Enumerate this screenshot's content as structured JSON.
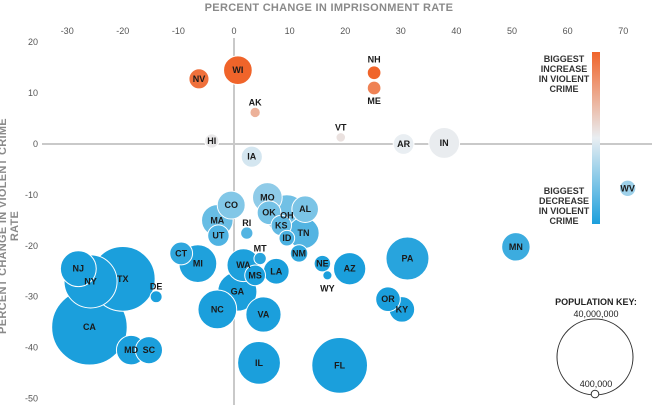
{
  "chart_data": {
    "type": "scatter",
    "xlabel": "PERCENT CHANGE IN IMPRISONMENT RATE",
    "ylabel": "PERCENT CHANGE IN VIOLENT CRIME RATE",
    "xlim": [
      -30,
      72
    ],
    "ylim": [
      -50,
      20
    ],
    "xticks": [
      "-30",
      "-20",
      "-10",
      "0",
      "10",
      "20",
      "30",
      "40",
      "50",
      "60",
      "70"
    ],
    "yticks": [
      "20",
      "10",
      "0",
      "-10",
      "-20",
      "-30",
      "-40",
      "-50"
    ],
    "color_legend": {
      "top_label": "BIGGEST INCREASE IN VIOLENT CRIME",
      "bottom_label": "BIGGEST DECREASE IN VIOLENT CRIME",
      "top_color": "#f0642a",
      "mid_color": "#e9eef2",
      "bottom_color": "#1b9fdc"
    },
    "population_key": {
      "title": "POPULATION KEY:",
      "large_label": "40,000,000",
      "small_label": "400,000"
    },
    "points": [
      {
        "label": "WI",
        "x": 0.7,
        "y": 14.5,
        "pop": 5.7
      },
      {
        "label": "NV",
        "x": -6.3,
        "y": 12.8,
        "pop": 2.8
      },
      {
        "label": "NH",
        "x": 25.2,
        "y": 14.0,
        "pop": 1.3
      },
      {
        "label": "ME",
        "x": 25.2,
        "y": 11.0,
        "pop": 1.3
      },
      {
        "label": "AK",
        "x": 3.8,
        "y": 6.2,
        "pop": 0.74
      },
      {
        "label": "VT",
        "x": 19.2,
        "y": 1.3,
        "pop": 0.63
      },
      {
        "label": "HI",
        "x": -4.0,
        "y": 0.6,
        "pop": 1.4
      },
      {
        "label": "AR",
        "x": 30.5,
        "y": 0.0,
        "pop": 3.0
      },
      {
        "label": "IN",
        "x": 37.8,
        "y": 0.2,
        "pop": 6.6
      },
      {
        "label": "IA",
        "x": 3.2,
        "y": -2.5,
        "pop": 3.1
      },
      {
        "label": "WV",
        "x": 70.8,
        "y": -8.7,
        "pop": 1.85
      },
      {
        "label": "CO",
        "x": -0.5,
        "y": -12.0,
        "pop": 5.4
      },
      {
        "label": "MO",
        "x": 6.0,
        "y": -10.5,
        "pop": 6.1
      },
      {
        "label": "OK",
        "x": 6.3,
        "y": -13.5,
        "pop": 3.9
      },
      {
        "label": "AL",
        "x": 12.8,
        "y": -12.8,
        "pop": 4.9
      },
      {
        "label": "OH",
        "x": 9.5,
        "y": -14.0,
        "pop": 11.6
      },
      {
        "label": "KS",
        "x": 8.5,
        "y": -16.0,
        "pop": 2.9
      },
      {
        "label": "MA",
        "x": -3.0,
        "y": -15.0,
        "pop": 6.9
      },
      {
        "label": "TN",
        "x": 12.5,
        "y": -17.5,
        "pop": 6.8
      },
      {
        "label": "ID",
        "x": 9.5,
        "y": -18.5,
        "pop": 1.7
      },
      {
        "label": "RI",
        "x": 2.3,
        "y": -17.5,
        "pop": 1.05
      },
      {
        "label": "UT",
        "x": -2.8,
        "y": -18.0,
        "pop": 3.2
      },
      {
        "label": "NM",
        "x": 11.7,
        "y": -21.5,
        "pop": 2.1
      },
      {
        "label": "MN",
        "x": 50.7,
        "y": -20.2,
        "pop": 5.6
      },
      {
        "label": "CT",
        "x": -9.5,
        "y": -21.5,
        "pop": 3.6
      },
      {
        "label": "MI",
        "x": -6.5,
        "y": -23.5,
        "pop": 9.9
      },
      {
        "label": "PA",
        "x": 31.2,
        "y": -22.5,
        "pop": 12.8
      },
      {
        "label": "NE",
        "x": 15.9,
        "y": -23.5,
        "pop": 1.9
      },
      {
        "label": "AZ",
        "x": 20.8,
        "y": -24.5,
        "pop": 7.2
      },
      {
        "label": "WA",
        "x": 1.7,
        "y": -23.8,
        "pop": 7.5
      },
      {
        "label": "MT",
        "x": 4.7,
        "y": -22.5,
        "pop": 1.06
      },
      {
        "label": "LA",
        "x": 7.6,
        "y": -25.0,
        "pop": 4.6
      },
      {
        "label": "MS",
        "x": 3.8,
        "y": -25.8,
        "pop": 2.98
      },
      {
        "label": "NJ",
        "x": -28.0,
        "y": -24.5,
        "pop": 8.9
      },
      {
        "label": "TX",
        "x": -20.0,
        "y": -26.5,
        "pop": 29.0
      },
      {
        "label": "WY",
        "x": 16.8,
        "y": -25.8,
        "pop": 0.58
      },
      {
        "label": "NY",
        "x": -25.8,
        "y": -27.0,
        "pop": 19.5
      },
      {
        "label": "DE",
        "x": -14.0,
        "y": -30.0,
        "pop": 0.99
      },
      {
        "label": "GA",
        "x": 0.6,
        "y": -29.0,
        "pop": 10.6
      },
      {
        "label": "OR",
        "x": 27.7,
        "y": -30.5,
        "pop": 4.2
      },
      {
        "label": "KY",
        "x": 30.2,
        "y": -32.5,
        "pop": 4.5
      },
      {
        "label": "NC",
        "x": -3.0,
        "y": -32.5,
        "pop": 10.4
      },
      {
        "label": "VA",
        "x": 5.3,
        "y": -33.5,
        "pop": 8.6
      },
      {
        "label": "CA",
        "x": -26.0,
        "y": -36.0,
        "pop": 39.5
      },
      {
        "label": "MD",
        "x": -18.5,
        "y": -40.5,
        "pop": 6.0
      },
      {
        "label": "SC",
        "x": -15.3,
        "y": -40.5,
        "pop": 5.1
      },
      {
        "label": "IL",
        "x": 4.5,
        "y": -43.0,
        "pop": 12.7
      },
      {
        "label": "FL",
        "x": 19.0,
        "y": -43.5,
        "pop": 21.5
      }
    ]
  }
}
